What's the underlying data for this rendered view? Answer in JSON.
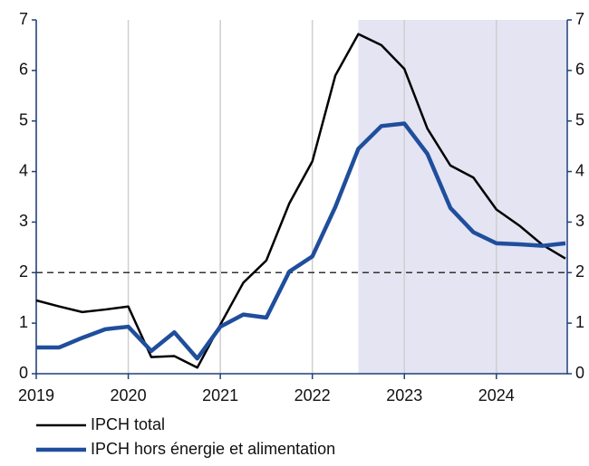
{
  "chart_data": {
    "type": "line",
    "x": [
      2019,
      2019.25,
      2019.5,
      2019.75,
      2020,
      2020.25,
      2020.5,
      2020.75,
      2021,
      2021.25,
      2021.5,
      2021.75,
      2022,
      2022.25,
      2022.5,
      2022.75,
      2023,
      2023.25,
      2023.5,
      2023.75,
      2024,
      2024.25,
      2024.5,
      2024.75
    ],
    "series": [
      {
        "name": "IPCH total",
        "color": "#000000",
        "values": [
          1.45,
          1.33,
          1.22,
          1.27,
          1.33,
          0.33,
          0.35,
          0.12,
          0.97,
          1.8,
          2.24,
          3.37,
          4.2,
          5.9,
          6.72,
          6.5,
          6.03,
          4.85,
          4.12,
          3.88,
          3.25,
          2.93,
          2.55,
          2.28
        ]
      },
      {
        "name": "IPCH hors énergie et alimentation",
        "color": "#1f4e9c",
        "values": [
          0.52,
          0.52,
          0.71,
          0.88,
          0.93,
          0.45,
          0.82,
          0.3,
          0.93,
          1.17,
          1.11,
          2.02,
          2.32,
          3.3,
          4.45,
          4.9,
          4.95,
          4.35,
          3.28,
          2.8,
          2.58,
          2.56,
          2.53,
          2.58
        ]
      }
    ],
    "xlim": [
      2019,
      2024.77
    ],
    "xticks": [
      2019,
      2020,
      2021,
      2022,
      2023,
      2024
    ],
    "ylim": [
      0,
      7
    ],
    "yticks": [
      0,
      1,
      2,
      3,
      4,
      5,
      6,
      7
    ],
    "y2lim": [
      0,
      7
    ],
    "y2ticks": [
      0,
      1,
      2,
      3,
      4,
      5,
      6,
      7
    ],
    "shaded_from": 2022.5,
    "shade_color": "#e4e4f3",
    "reference_line": 2,
    "grid": true
  }
}
